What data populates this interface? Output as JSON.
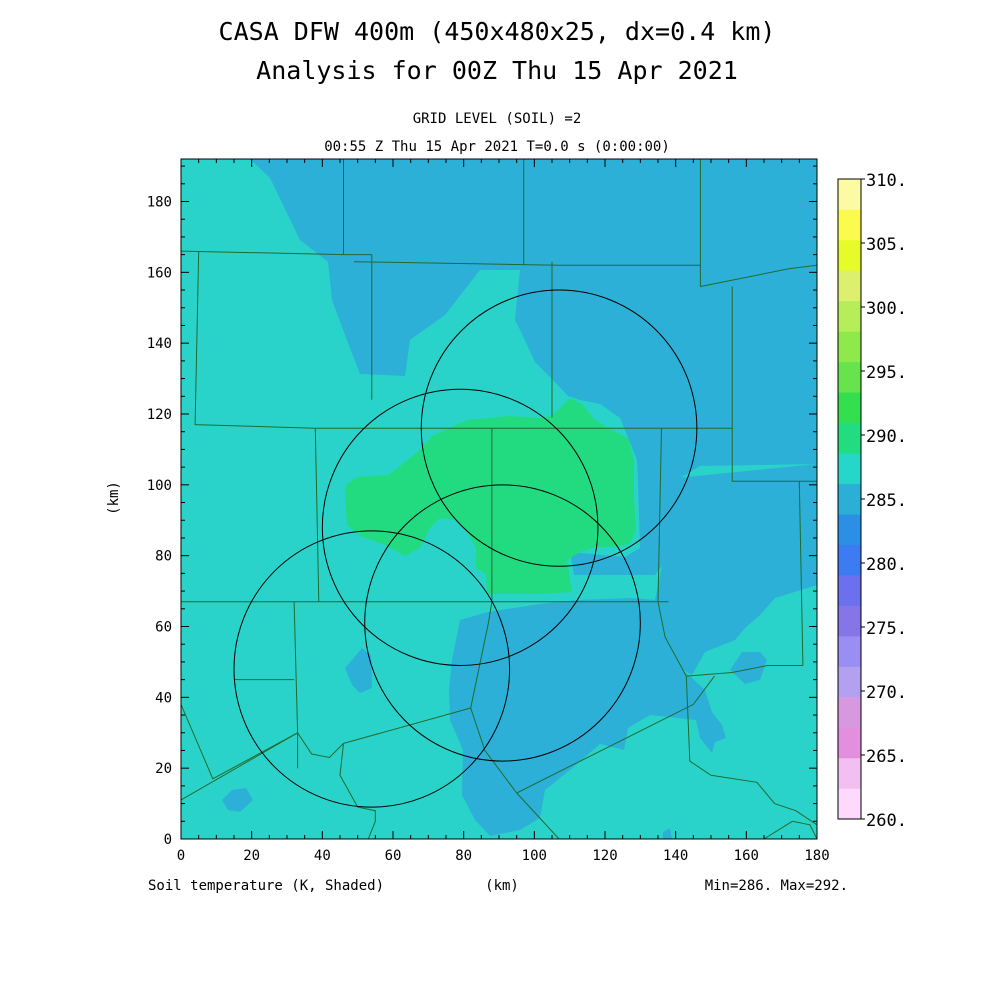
{
  "header": {
    "title_line1": "CASA DFW 400m (450x480x25, dx=0.4 km)",
    "title_line2": "Analysis for 00Z Thu 15 Apr 2021",
    "grid_level": "GRID LEVEL (SOIL) =2",
    "time_line": "00:55 Z Thu 15 Apr 2021   T=0.0 s (0:00:00)"
  },
  "footer": {
    "field_label": "Soil temperature (K, Shaded)",
    "x_unit": "(km)",
    "min_max": "Min=286. Max=292."
  },
  "axes": {
    "y_label": "(km)",
    "x_range": [
      0,
      180
    ],
    "y_range": [
      0,
      192
    ],
    "x_ticks": [
      "0",
      "20",
      "40",
      "60",
      "80",
      "100",
      "120",
      "140",
      "160",
      "180"
    ],
    "y_ticks": [
      "0",
      "20",
      "40",
      "60",
      "80",
      "100",
      "120",
      "140",
      "160",
      "180"
    ]
  },
  "colorbar": {
    "labels": [
      "310.",
      "305.",
      "300.",
      "295.",
      "290.",
      "285.",
      "280.",
      "275.",
      "270.",
      "265.",
      "260."
    ],
    "colors_bottom_to_top": [
      "#fdd9fd",
      "#f2c0f0",
      "#e38fe0",
      "#d898e0",
      "#b3a0f0",
      "#9a8ef5",
      "#8575e6",
      "#6a70ee",
      "#3d7bf2",
      "#2b8fe6",
      "#2bafd6",
      "#26d6c8",
      "#22dc80",
      "#33df4f",
      "#66e34d",
      "#8eea4a",
      "#b6ee5a",
      "#dcef6e",
      "#e5fb2a",
      "#fbfb4e",
      "#fcfba4"
    ]
  },
  "map": {
    "fill_colors": {
      "base_285_290": "#2ad3c9",
      "cool_280_285": "#2cb0d8",
      "warm_290_295": "#22db80"
    },
    "radar_circles_km": [
      {
        "cx": 107,
        "cy": 116,
        "r": 39
      },
      {
        "cx": 79,
        "cy": 88,
        "r": 39
      },
      {
        "cx": 54,
        "cy": 48,
        "r": 39
      },
      {
        "cx": 91,
        "cy": 61,
        "r": 39
      }
    ],
    "county_lines_km": [
      [
        [
          0,
          166
        ],
        [
          46,
          165
        ],
        [
          54,
          165
        ]
      ],
      [
        [
          46,
          192
        ],
        [
          46,
          165
        ]
      ],
      [
        [
          54,
          165
        ],
        [
          54,
          124
        ]
      ],
      [
        [
          97,
          192
        ],
        [
          97,
          162
        ]
      ],
      [
        [
          49,
          163
        ],
        [
          107,
          162
        ],
        [
          147,
          162
        ]
      ],
      [
        [
          147,
          192
        ],
        [
          147,
          156
        ],
        [
          172,
          161
        ],
        [
          180,
          162
        ]
      ],
      [
        [
          5,
          166
        ],
        [
          4,
          117
        ],
        [
          38,
          116
        ],
        [
          88,
          116
        ]
      ],
      [
        [
          88,
          116
        ],
        [
          126,
          116
        ],
        [
          156,
          116
        ]
      ],
      [
        [
          105,
          163
        ],
        [
          105,
          119
        ]
      ],
      [
        [
          156,
          156
        ],
        [
          156,
          101
        ],
        [
          180,
          101
        ]
      ],
      [
        [
          38,
          116
        ],
        [
          39,
          67
        ],
        [
          32,
          67
        ],
        [
          0,
          67
        ]
      ],
      [
        [
          39,
          67
        ],
        [
          132,
          67
        ],
        [
          136,
          67
        ],
        [
          138,
          67
        ]
      ],
      [
        [
          88,
          116
        ],
        [
          88,
          69
        ],
        [
          88,
          67
        ]
      ],
      [
        [
          136,
          116
        ],
        [
          135,
          67
        ]
      ],
      [
        [
          135,
          67
        ],
        [
          137,
          57
        ],
        [
          143,
          46
        ],
        [
          156,
          47
        ],
        [
          166,
          49
        ],
        [
          176,
          49
        ]
      ],
      [
        [
          175,
          101
        ],
        [
          176,
          49
        ]
      ],
      [
        [
          32,
          67
        ],
        [
          33,
          30
        ],
        [
          33,
          20
        ]
      ],
      [
        [
          0,
          38
        ],
        [
          9,
          17
        ],
        [
          33,
          30
        ]
      ],
      [
        [
          33,
          30
        ],
        [
          37,
          24
        ],
        [
          42,
          23
        ],
        [
          46,
          27
        ]
      ],
      [
        [
          0,
          11
        ],
        [
          33,
          30
        ]
      ],
      [
        [
          46,
          27
        ],
        [
          82,
          37
        ]
      ],
      [
        [
          82,
          37
        ],
        [
          86,
          25
        ],
        [
          95,
          13
        ]
      ],
      [
        [
          95,
          13
        ],
        [
          109,
          20
        ],
        [
          145,
          38
        ],
        [
          151,
          46
        ]
      ],
      [
        [
          46,
          27
        ],
        [
          45,
          18
        ],
        [
          50,
          9
        ],
        [
          55,
          8
        ],
        [
          55,
          5
        ],
        [
          53,
          0
        ]
      ],
      [
        [
          82,
          37
        ],
        [
          87,
          61
        ],
        [
          88,
          67
        ]
      ],
      [
        [
          15,
          45
        ],
        [
          32,
          45
        ]
      ],
      [
        [
          143,
          46
        ],
        [
          144,
          22
        ],
        [
          150,
          18
        ],
        [
          163,
          16
        ],
        [
          168,
          10
        ],
        [
          174,
          8
        ],
        [
          180,
          4
        ]
      ],
      [
        [
          107,
          0
        ],
        [
          95,
          13
        ]
      ],
      [
        [
          165,
          0
        ],
        [
          173,
          5
        ],
        [
          178,
          4
        ],
        [
          180,
          0
        ]
      ]
    ]
  }
}
